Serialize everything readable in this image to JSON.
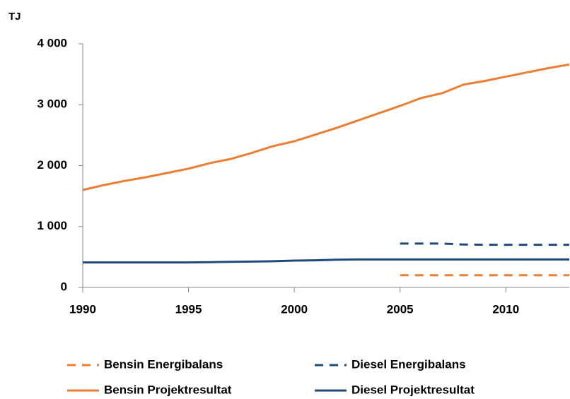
{
  "chart_data": {
    "type": "line",
    "y_label": "TJ",
    "x": [
      1990,
      1991,
      1992,
      1993,
      1994,
      1995,
      1996,
      1997,
      1998,
      1999,
      2000,
      2001,
      2002,
      2003,
      2004,
      2005,
      2006,
      2007,
      2008,
      2009,
      2010,
      2011,
      2012,
      2013
    ],
    "xlim": [
      1990,
      2013
    ],
    "xticks": [
      1990,
      1995,
      2000,
      2005,
      2010
    ],
    "ylim": [
      0,
      4000
    ],
    "yticks": [
      0,
      {
        "value": 1000,
        "label": "1 000"
      },
      {
        "value": 2000,
        "label": "2 000"
      },
      {
        "value": 3000,
        "label": "3 000"
      },
      {
        "value": 4000,
        "label": "4 000"
      }
    ],
    "grid": false,
    "legend": "bottom",
    "series": [
      {
        "name": "Bensin Energibalans",
        "color": "#ed7d31",
        "dashed": true,
        "values": [
          null,
          null,
          null,
          null,
          null,
          null,
          null,
          null,
          null,
          null,
          null,
          null,
          null,
          null,
          null,
          200,
          200,
          200,
          200,
          200,
          200,
          200,
          200,
          200
        ]
      },
      {
        "name": "Diesel Energibalans",
        "color": "#1f497d",
        "dashed": true,
        "values": [
          null,
          null,
          null,
          null,
          null,
          null,
          null,
          null,
          null,
          null,
          null,
          null,
          null,
          null,
          null,
          720,
          720,
          720,
          705,
          700,
          700,
          700,
          700,
          700
        ]
      },
      {
        "name": "Bensin Projektresultat",
        "color": "#ed7d31",
        "dashed": false,
        "values": [
          1600,
          1680,
          1750,
          1810,
          1880,
          1950,
          2040,
          2110,
          2210,
          2320,
          2400,
          2510,
          2620,
          2740,
          2860,
          2980,
          3110,
          3190,
          3330,
          3390,
          3460,
          3530,
          3600,
          3660
        ]
      },
      {
        "name": "Diesel Projektresultat",
        "color": "#1f497d",
        "dashed": false,
        "values": [
          410,
          410,
          410,
          410,
          410,
          410,
          415,
          420,
          425,
          430,
          440,
          445,
          455,
          460,
          460,
          460,
          460,
          460,
          460,
          460,
          460,
          460,
          460,
          460
        ]
      }
    ]
  }
}
